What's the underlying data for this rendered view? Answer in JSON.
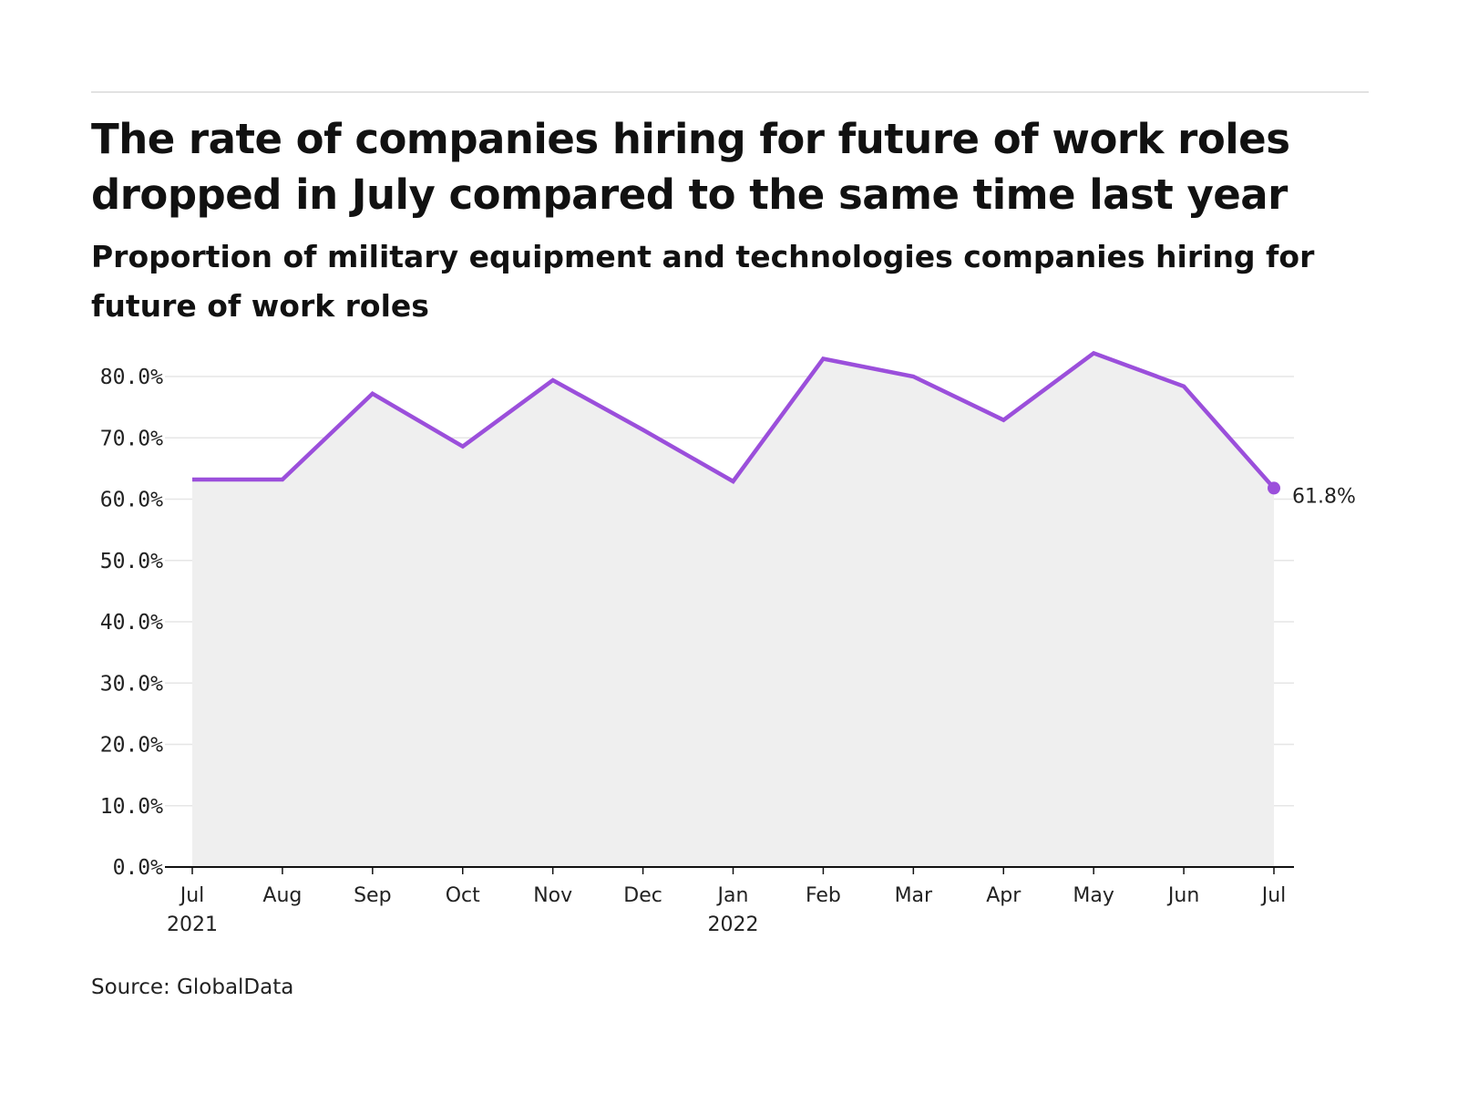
{
  "header": {
    "title": "The rate of companies hiring for future of work roles dropped in July compared to the same time last year",
    "subtitle": "Proportion of military equipment and technologies companies hiring for future of work roles"
  },
  "footer": {
    "source": "Source: GlobalData"
  },
  "colors": {
    "line": "#9b4fdb",
    "area": "#efefef",
    "grid": "#e6e6e6",
    "axis": "#111111"
  },
  "chart_data": {
    "type": "area",
    "title": "The rate of companies hiring for future of work roles dropped in July compared to the same time last year",
    "subtitle": "Proportion of military equipment and technologies companies hiring for future of work roles",
    "categories": [
      "Jul 2021",
      "Aug 2021",
      "Sep 2021",
      "Oct 2021",
      "Nov 2021",
      "Dec 2021",
      "Jan 2022",
      "Feb 2022",
      "Mar 2022",
      "Apr 2022",
      "May 2022",
      "Jun 2022",
      "Jul 2022"
    ],
    "x_tick_labels": [
      {
        "month": "Jul",
        "year": "2021"
      },
      {
        "month": "Aug",
        "year": ""
      },
      {
        "month": "Sep",
        "year": ""
      },
      {
        "month": "Oct",
        "year": ""
      },
      {
        "month": "Nov",
        "year": ""
      },
      {
        "month": "Dec",
        "year": ""
      },
      {
        "month": "Jan",
        "year": "2022"
      },
      {
        "month": "Feb",
        "year": ""
      },
      {
        "month": "Mar",
        "year": ""
      },
      {
        "month": "Apr",
        "year": ""
      },
      {
        "month": "May",
        "year": ""
      },
      {
        "month": "Jun",
        "year": ""
      },
      {
        "month": "Jul",
        "year": ""
      }
    ],
    "values": [
      63.2,
      63.2,
      77.2,
      68.6,
      79.4,
      71.3,
      62.9,
      82.9,
      80.0,
      72.9,
      83.8,
      78.4,
      61.8
    ],
    "y_ticks": [
      0,
      10,
      20,
      30,
      40,
      50,
      60,
      70,
      80
    ],
    "y_tick_labels": [
      "0.0%",
      "10.0%",
      "20.0%",
      "30.0%",
      "40.0%",
      "50.0%",
      "60.0%",
      "70.0%",
      "80.0%"
    ],
    "ylim": [
      0,
      80
    ],
    "end_label": "61.8%",
    "grid": true,
    "legend": "none"
  }
}
